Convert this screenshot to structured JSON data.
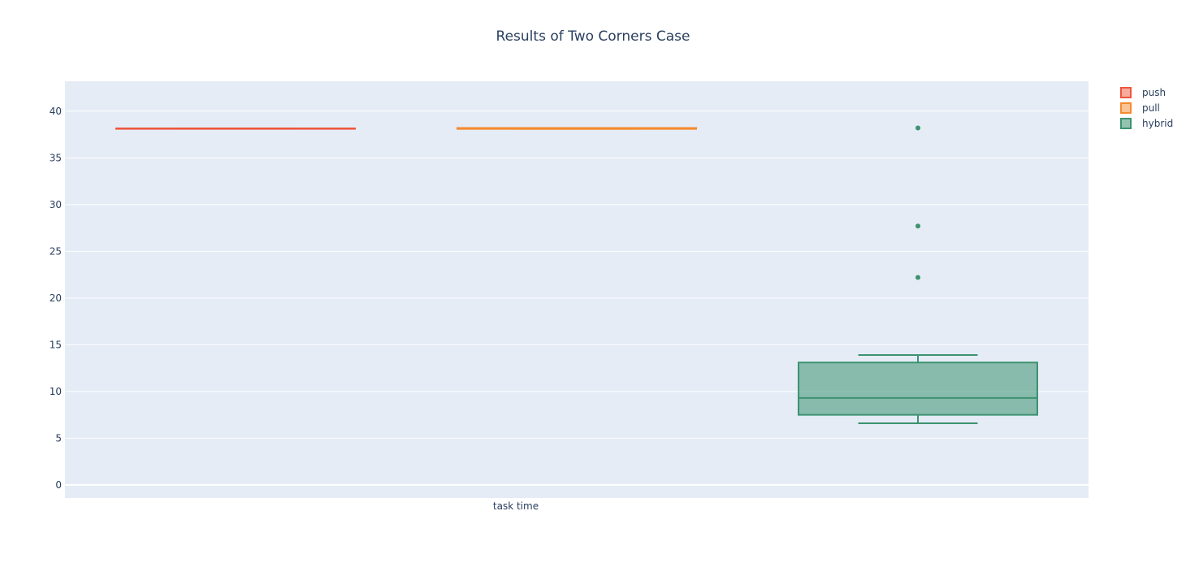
{
  "chart_data": {
    "type": "box",
    "title": "Results of Two Corners Case",
    "xlabel": "",
    "ylabel": "",
    "categories": [
      "task time"
    ],
    "ylim": [
      -1.4,
      43.2
    ],
    "yticks": [
      0,
      5,
      10,
      15,
      20,
      25,
      30,
      35,
      40
    ],
    "grid": true,
    "legend_position": "top-right",
    "series": [
      {
        "name": "push",
        "color": "#ef553b",
        "fill": "rgba(239,85,59,0.5)",
        "q1": 38.15,
        "median": 38.15,
        "q3": 38.15,
        "whisker_low": 38.15,
        "whisker_high": 38.15,
        "outliers": []
      },
      {
        "name": "pull",
        "color": "#f58a2e",
        "fill": "rgba(245,138,46,0.5)",
        "q1": 38.1,
        "median": 38.15,
        "q3": 38.2,
        "whisker_low": 38.1,
        "whisker_high": 38.2,
        "outliers": []
      },
      {
        "name": "hybrid",
        "color": "#3c9370",
        "fill": "rgba(60,147,112,0.55)",
        "q1": 7.5,
        "median": 9.3,
        "q3": 13.1,
        "whisker_low": 6.6,
        "whisker_high": 13.9,
        "outliers": [
          22.2,
          27.7,
          38.2
        ]
      }
    ]
  }
}
